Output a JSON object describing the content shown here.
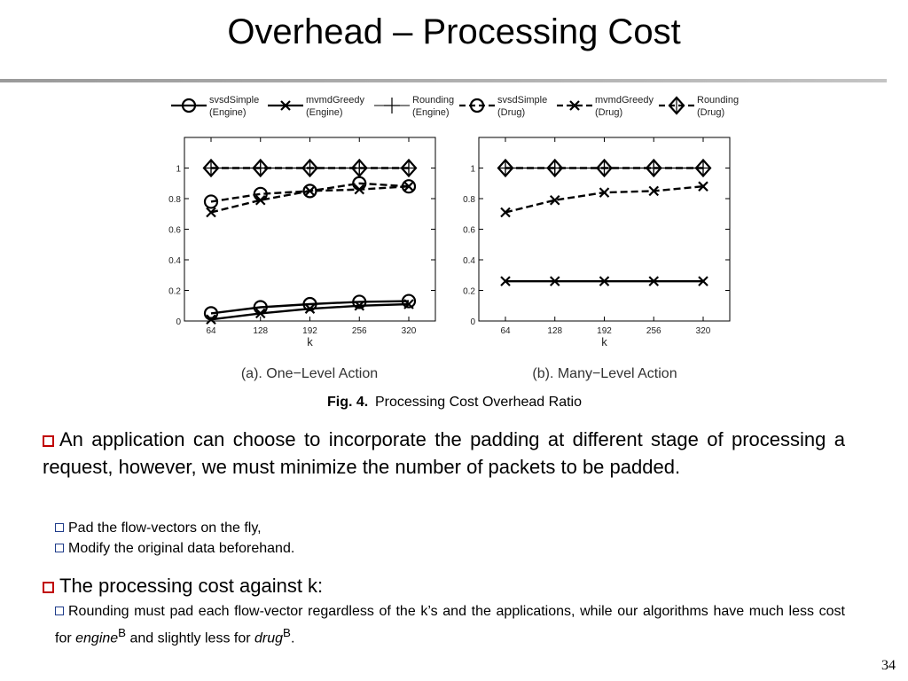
{
  "slide": {
    "title": "Overhead – Processing Cost",
    "page_number": "34"
  },
  "figure": {
    "caption_label": "Fig. 4.",
    "caption_text": "Processing Cost Overhead Ratio",
    "legend": [
      {
        "name": "svsdSimple",
        "sub": "(Engine)",
        "marker": "circle",
        "dash": false
      },
      {
        "name": "mvmdGreedy",
        "sub": "(Engine)",
        "marker": "x",
        "dash": false
      },
      {
        "name": "Rounding",
        "sub": "(Engine)",
        "marker": "plus",
        "dash": false
      },
      {
        "name": "svsdSimple",
        "sub": "(Drug)",
        "marker": "circle",
        "dash": true
      },
      {
        "name": "mvmdGreedy",
        "sub": "(Drug)",
        "marker": "x",
        "dash": true
      },
      {
        "name": "Rounding",
        "sub": "(Drug)",
        "marker": "diamond",
        "dash": true
      }
    ]
  },
  "chart_data": [
    {
      "type": "line",
      "title": "(a). One−Level Action",
      "xlabel": "k",
      "ylabel": "",
      "x": [
        64,
        128,
        192,
        256,
        320
      ],
      "x_ticks": [
        "64",
        "128",
        "192",
        "256",
        "320"
      ],
      "y_ticks": [
        "0",
        "0.2",
        "0.4",
        "0.6",
        "0.8",
        "1"
      ],
      "ylim": [
        0,
        1.2
      ],
      "series": [
        {
          "name": "svsdSimple (Engine)",
          "marker": "circle",
          "dash": false,
          "values": [
            0.05,
            0.09,
            0.11,
            0.125,
            0.13
          ]
        },
        {
          "name": "mvmdGreedy (Engine)",
          "marker": "x",
          "dash": false,
          "values": [
            0.01,
            0.05,
            0.08,
            0.1,
            0.11
          ]
        },
        {
          "name": "Rounding (Engine)",
          "marker": "plus",
          "dash": false,
          "values": [
            1,
            1,
            1,
            1,
            1
          ]
        },
        {
          "name": "svsdSimple (Drug)",
          "marker": "circle",
          "dash": true,
          "values": [
            0.78,
            0.83,
            0.85,
            0.9,
            0.88
          ]
        },
        {
          "name": "mvmdGreedy (Drug)",
          "marker": "x",
          "dash": true,
          "values": [
            0.71,
            0.79,
            0.85,
            0.86,
            0.88
          ]
        },
        {
          "name": "Rounding (Drug)",
          "marker": "diamond",
          "dash": true,
          "values": [
            1,
            1,
            1,
            1,
            1
          ]
        }
      ]
    },
    {
      "type": "line",
      "title": "(b). Many−Level Action",
      "xlabel": "k",
      "ylabel": "",
      "x": [
        64,
        128,
        192,
        256,
        320
      ],
      "x_ticks": [
        "64",
        "128",
        "192",
        "256",
        "320"
      ],
      "y_ticks": [
        "0",
        "0.2",
        "0.4",
        "0.6",
        "0.8",
        "1"
      ],
      "ylim": [
        0,
        1.2
      ],
      "series": [
        {
          "name": "mvmdGreedy (Engine)",
          "marker": "x",
          "dash": false,
          "values": [
            0.26,
            0.26,
            0.26,
            0.26,
            0.26
          ]
        },
        {
          "name": "Rounding (Engine)",
          "marker": "plus",
          "dash": false,
          "values": [
            1,
            1,
            1,
            1,
            1
          ]
        },
        {
          "name": "mvmdGreedy (Drug)",
          "marker": "x",
          "dash": true,
          "values": [
            0.71,
            0.79,
            0.84,
            0.85,
            0.88
          ]
        },
        {
          "name": "Rounding (Drug)",
          "marker": "diamond",
          "dash": true,
          "values": [
            1,
            1,
            1,
            1,
            1
          ]
        }
      ]
    }
  ],
  "bullets": [
    {
      "text": "An application can choose to incorporate the padding at different stage of processing a request, however, we must minimize the number of packets to be padded.",
      "subs": [
        "Pad the flow-vectors on the fly,",
        "Modify the original data beforehand."
      ]
    },
    {
      "text": "The processing cost against k:",
      "sub_prefix": "Rounding must pad each flow-vector regardless of the k’s and the applications, while our algorithms have much less cost for ",
      "engine": "engine",
      "sup": "B",
      "sub_middle": " and slightly less for ",
      "drug": "drug",
      "sub_end": "."
    }
  ],
  "colors": {
    "bullet_red": "#c00000",
    "sub_bullet_blue": "#1f3c8a",
    "rule_gray": "#a6a6a6"
  }
}
